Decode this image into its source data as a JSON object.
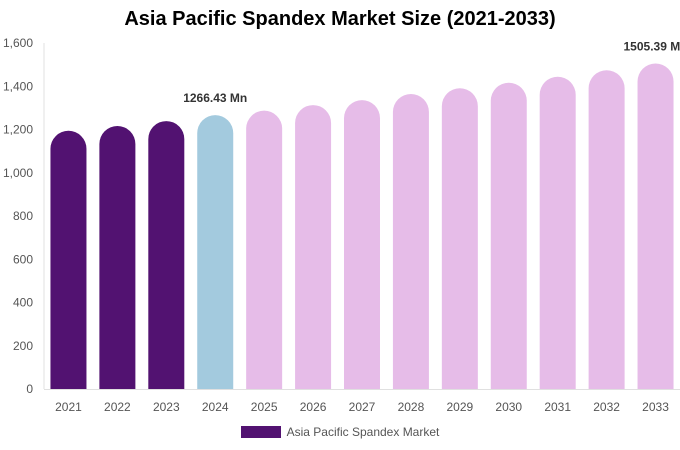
{
  "chart_data": {
    "type": "bar",
    "title": "Asia Pacific Spandex Market Size (2021-2033)",
    "categories": [
      "2021",
      "2022",
      "2023",
      "2024",
      "2025",
      "2026",
      "2027",
      "2028",
      "2029",
      "2030",
      "2031",
      "2032",
      "2033"
    ],
    "series": [
      {
        "name": "Asia Pacific Spandex Market",
        "values": [
          1194,
          1216,
          1239,
          1266.43,
          1287,
          1313,
          1336,
          1364,
          1391,
          1416,
          1444,
          1474,
          1505.39
        ]
      }
    ],
    "data_labels": [
      {
        "category": "2024",
        "text": "1266.43 Mn"
      },
      {
        "category": "2033",
        "text": "1505.39 Mn"
      }
    ],
    "ylim": [
      0,
      1600
    ],
    "yticks": [
      "0",
      "200",
      "400",
      "600",
      "800",
      "1,000",
      "1,200",
      "1,400",
      "1,600"
    ],
    "xlabel": "",
    "ylabel": "",
    "grid": false,
    "legend_position": "bottom",
    "colors": {
      "historical": "#521271",
      "current": "#a3cade",
      "forecast": "#e6bce8"
    }
  }
}
